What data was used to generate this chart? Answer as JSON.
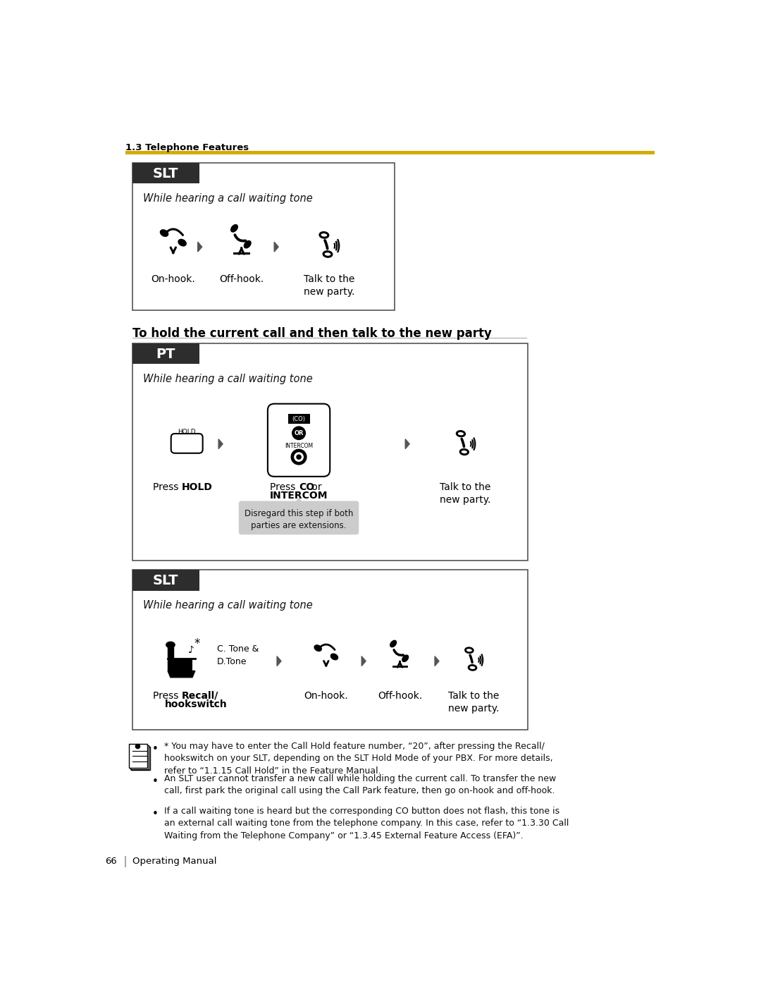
{
  "page_bg": "#ffffff",
  "header_text": "1.3 Telephone Features",
  "header_color": "#000000",
  "gold_line_color": "#D4AC00",
  "footer_page": "66",
  "footer_text": "Operating Manual",
  "section_heading": "To hold the current call and then talk to the new party",
  "top_box_label": "SLT",
  "top_box_subtitle": "While hearing a call waiting tone",
  "top_box_steps": [
    "On-hook.",
    "Off-hook.",
    "Talk to the\nnew party."
  ],
  "pt_box_label": "PT",
  "pt_box_subtitle": "While hearing a call waiting tone",
  "pt_box_steps_1": "Press ",
  "pt_box_steps_1b": "HOLD",
  "pt_box_steps_1c": ".",
  "pt_box_steps_2a": "Press ",
  "pt_box_steps_2b": "CO",
  "pt_box_steps_2c": " or\n",
  "pt_box_steps_2d": "INTERCOM",
  "pt_box_steps_2e": ".",
  "pt_box_steps_3": "Talk to the\nnew party.",
  "pt_box_note": "Disregard this step if both\nparties are extensions.",
  "slt_box_label": "SLT",
  "slt_box_subtitle": "While hearing a call waiting tone",
  "slt_box_step1a": "Press ",
  "slt_box_step1b": "Recall/",
  "slt_box_step1c": "\nhookswitch",
  "slt_box_step1d": ".",
  "slt_box_steps": [
    "On-hook.",
    "Off-hook.",
    "Talk to the\nnew party."
  ],
  "slt_ctone_label": "C. Tone &\nD.Tone",
  "bullet_notes": [
    "* You may have to enter the Call Hold feature number, “20”, after pressing the Recall/\nhookswitch on your SLT, depending on the SLT Hold Mode of your PBX. For more details,\nrefer to “1.1.15 Call Hold” in the Feature Manual.",
    "An SLT user cannot transfer a new call while holding the current call. To transfer the new\ncall, first park the original call using the Call Park feature, then go on-hook and off-hook.",
    "If a call waiting tone is heard but the corresponding CO button does not flash, this tone is\nan external call waiting tone from the telephone company. In this case, refer to “1.3.30 Call\nWaiting from the Telephone Company” or “1.3.45 External Feature Access (EFA)”."
  ],
  "box_border_color": "#555555",
  "box_bg": "#ffffff",
  "label_bg": "#2d2d2d",
  "label_text_color": "#ffffff",
  "arrow_color": "#555555",
  "note_bubble_bg": "#cccccc"
}
